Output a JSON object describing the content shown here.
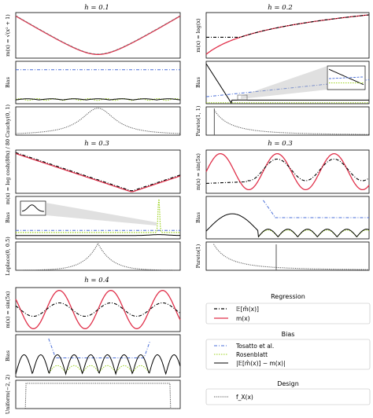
{
  "chart_data": [
    {
      "type": "line",
      "title": "h = 0.1",
      "ylabel_main": "m(x) = √(x² + 1)",
      "ylabel_bias": "Bias",
      "ylabel_design": "Cauchy(0, 1)",
      "series": {
        "regression": "m",
        "bias": [
          "tosatto",
          "rosenblatt",
          "abs"
        ],
        "design": "density"
      }
    },
    {
      "type": "line",
      "title": "h = 0.2",
      "ylabel_main": "m(x) = log(x)",
      "ylabel_bias": "Bias",
      "ylabel_design": "Pareto(1, 1)",
      "series": {
        "regression": [
          "m",
          "expected"
        ],
        "bias": [
          "tosatto",
          "rosenblatt",
          "abs"
        ],
        "design": "density"
      }
    },
    {
      "type": "line",
      "title": "h = 0.3",
      "ylabel_main": "m(x) = log cosh(80x) / 80",
      "ylabel_bias": "Bias",
      "ylabel_design": "Laplace(0, 0.5)",
      "series": {
        "regression": [
          "m",
          "expected"
        ],
        "bias": [
          "tosatto",
          "rosenblatt",
          "abs"
        ],
        "design": "density"
      }
    },
    {
      "type": "line",
      "title": "h = 0.3",
      "ylabel_main": "m(x) = sin(5x)",
      "ylabel_bias": "Bias",
      "ylabel_design": "Pareto(1)",
      "series": {
        "regression": [
          "m",
          "expected"
        ],
        "bias": [
          "tosatto",
          "rosenblatt",
          "abs"
        ],
        "design": "density"
      }
    },
    {
      "type": "line",
      "title": "h = 0.4",
      "ylabel_main": "m(x) = sin(5x)",
      "ylabel_bias": "Bias",
      "ylabel_design": "Uniform(−2, 2)",
      "series": {
        "regression": [
          "m",
          "expected"
        ],
        "bias": [
          "tosatto",
          "rosenblatt",
          "abs"
        ],
        "design": "density"
      }
    }
  ],
  "legend": {
    "regression": {
      "title": "Regression",
      "expected": "𝔼[m̂(x)]",
      "true": "m(x)"
    },
    "bias": {
      "title": "Bias",
      "tosatto": "Tosatto et al.",
      "rosenblatt": "Rosenblatt",
      "abs": "|𝔼[m̂(x)] − m(x)|"
    },
    "design": {
      "title": "Design",
      "density": "f_X(x)"
    }
  },
  "colors": {
    "m": "#e0304a",
    "expected": "#000000",
    "tosatto": "#4a6fd8",
    "rosenblatt": "#9bd21c",
    "abs": "#000000",
    "density": "#555555"
  }
}
